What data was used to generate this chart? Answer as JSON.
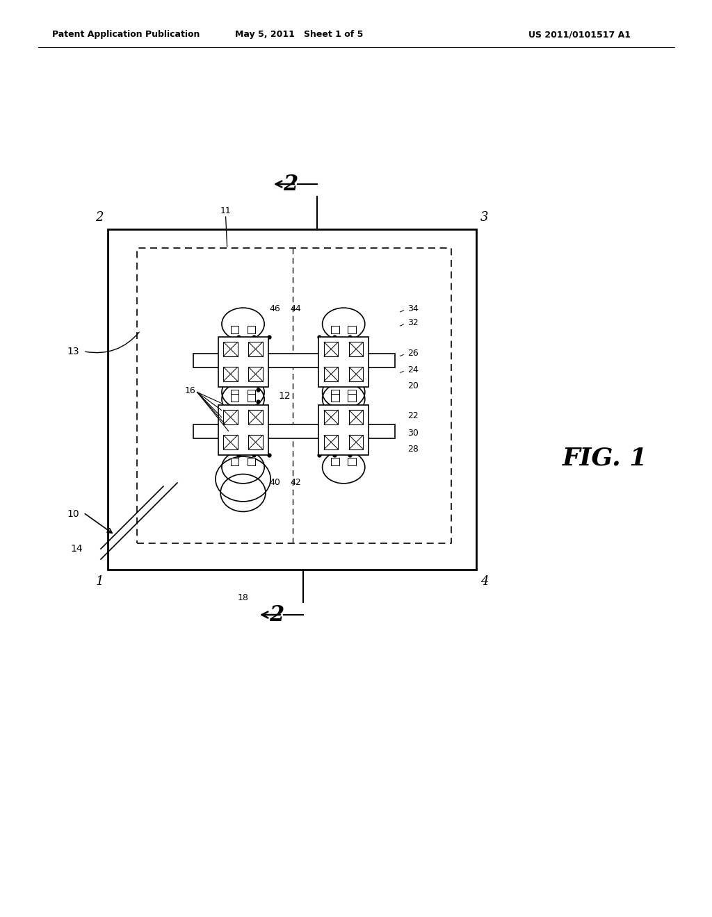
{
  "bg_color": "#ffffff",
  "header_left": "Patent Application Publication",
  "header_mid": "May 5, 2011   Sheet 1 of 5",
  "header_right": "US 2011/0101517 A1",
  "fig_label": "FIG. 1",
  "line_color": "#000000"
}
